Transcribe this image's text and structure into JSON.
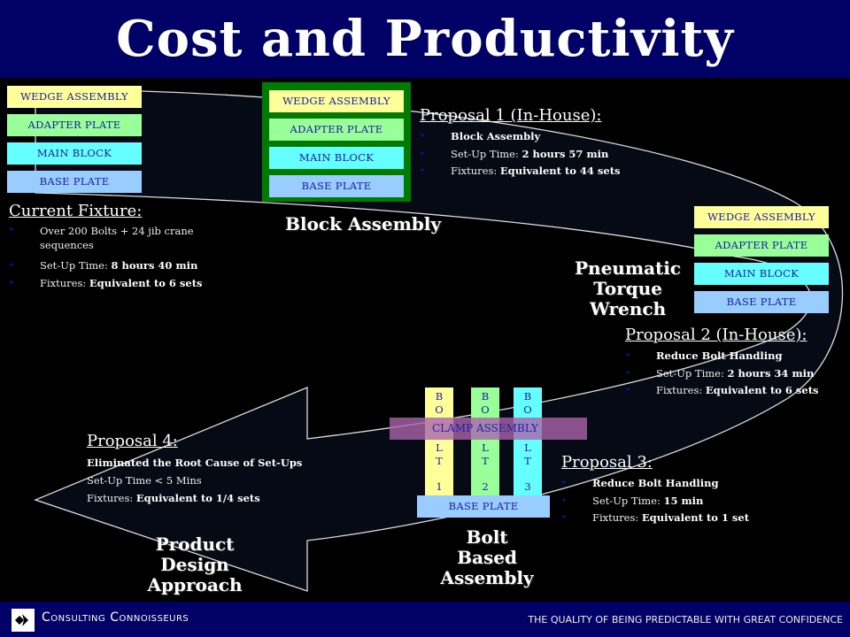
{
  "title": "Cost and Productivity",
  "stack_labels": {
    "wedge": "WEDGE ASSEMBLY",
    "adapter": "ADAPTER PLATE",
    "main": "MAIN BLOCK",
    "base": "BASE PLATE"
  },
  "current": {
    "heading": "Current Fixture:",
    "items": [
      {
        "text": "Over 200 Bolts + 24 jib crane sequences"
      },
      {
        "label": "Set-Up Time: ",
        "value": "8 hours 40 min"
      },
      {
        "label": "Fixtures: ",
        "value": "Equivalent to 6 sets"
      }
    ]
  },
  "block_assembly": "Block Assembly",
  "p1": {
    "heading": "Proposal 1 (In-House):",
    "item1": "Block Assembly",
    "l2": "Set-Up Time: ",
    "v2": "2 hours 57 min",
    "l3": "Fixtures: ",
    "v3": "Equivalent to 44 sets"
  },
  "pneumatic": [
    "Pneumatic",
    "Torque",
    "Wrench"
  ],
  "p2": {
    "heading": "Proposal 2 (In-House):",
    "item1": "Reduce Bolt Handling",
    "l2": "Set-Up Time: ",
    "v2": "2 hours 34 min",
    "l3": "Fixtures: ",
    "v3": "Equivalent to 6 sets"
  },
  "bolts": [
    {
      "letters": "B\nO\nL\nT",
      "num": "1"
    },
    {
      "letters": "B\nO\nL\nT",
      "num": "2"
    },
    {
      "letters": "B\nO\nL\nT",
      "num": "3"
    }
  ],
  "clamp": "CLAMP ASSEMBLY",
  "bolt_based": [
    "Bolt",
    "Based",
    "Assembly"
  ],
  "p3": {
    "heading": "Proposal 3:",
    "item1": "Reduce Bolt Handling",
    "l2": "Set-Up Time: ",
    "v2": "15 min",
    "l3": "Fixtures: ",
    "v3": "Equivalent to 1 set"
  },
  "p4": {
    "heading": "Proposal 4:",
    "line1": "Eliminated the Root Cause of Set-Ups",
    "line2": "Set-Up Time < 5 Mins",
    "l3": "Fixtures: ",
    "v3": "Equivalent to 1/4 sets"
  },
  "product_design": [
    "Product",
    "Design",
    "Approach"
  ],
  "footer": {
    "brand": "Consulting Connoisseurs",
    "tagline": "THE QUALITY OF BEING PREDICTABLE WITH GREAT CONFIDENCE"
  },
  "colors": {
    "title_bg": "#000066",
    "wedge": "#ffff99",
    "adapter": "#99ff99",
    "main": "#66ffff",
    "base": "#99ccff",
    "frame": "#007a00"
  }
}
